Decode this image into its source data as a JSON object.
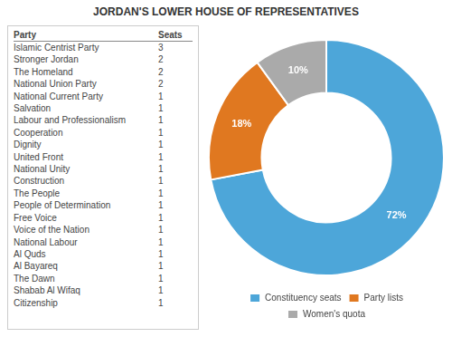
{
  "chart_data": [
    {
      "type": "table",
      "columns": [
        "Party",
        "Seats"
      ],
      "rows": [
        [
          "Islamic Centrist Party",
          3
        ],
        [
          "Stronger Jordan",
          2
        ],
        [
          "The Homeland",
          2
        ],
        [
          "National Union Party",
          2
        ],
        [
          "National Current Party",
          1
        ],
        [
          "Salvation",
          1
        ],
        [
          "Labour and Professionalism",
          1
        ],
        [
          "Cooperation",
          1
        ],
        [
          "Dignity",
          1
        ],
        [
          "United Front",
          1
        ],
        [
          "National Unity",
          1
        ],
        [
          "Construction",
          1
        ],
        [
          "The People",
          1
        ],
        [
          "People of Determination",
          1
        ],
        [
          "Free Voice",
          1
        ],
        [
          "Voice of the Nation",
          1
        ],
        [
          "National Labour",
          1
        ],
        [
          "Al Quds",
          1
        ],
        [
          "Al Bayareq",
          1
        ],
        [
          "The Dawn",
          1
        ],
        [
          "Shabab Al Wifaq",
          1
        ],
        [
          "Citizenship",
          1
        ]
      ]
    },
    {
      "type": "pie",
      "title": "JORDAN'S LOWER HOUSE OF REPRESENTATIVES",
      "categories": [
        "Constituency seats",
        "Party lists",
        "Women's quota"
      ],
      "values": [
        72,
        18,
        10
      ],
      "value_labels": [
        "72%",
        "18%",
        "10%"
      ],
      "colors": [
        "#4da6d9",
        "#e07820",
        "#aaaaaa"
      ],
      "data_labels": true,
      "legend": "bottom"
    }
  ]
}
